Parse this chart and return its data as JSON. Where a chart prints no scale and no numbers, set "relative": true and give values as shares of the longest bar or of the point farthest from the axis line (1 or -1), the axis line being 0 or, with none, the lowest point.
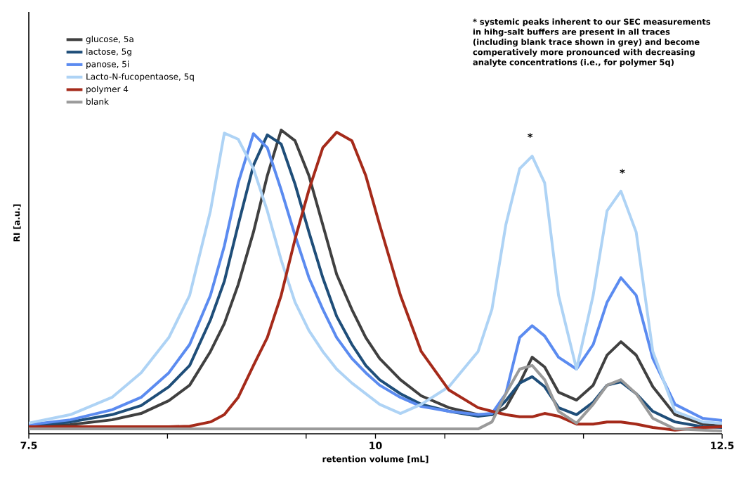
{
  "chart_data": {
    "type": "line",
    "relative": true,
    "xlabel": "retention volume [mL]",
    "ylabel": "RI [a.u.]",
    "xlim": [
      7.5,
      12.5
    ],
    "xticks": [
      7.5,
      {
        "value": 8.5,
        "label": null
      },
      {
        "value": 9.5,
        "label": null
      },
      10,
      {
        "value": 10.5,
        "label": null
      },
      {
        "value": 11.5,
        "label": null
      },
      12.5
    ],
    "legend": "top left",
    "marker": "none",
    "line_style": "solid",
    "grid": false,
    "x": [
      7.5,
      7.8,
      8.1,
      8.31,
      8.51,
      8.66,
      8.81,
      8.91,
      9.01,
      9.12,
      9.22,
      9.32,
      9.42,
      9.52,
      9.62,
      9.72,
      9.83,
      9.93,
      10.03,
      10.18,
      10.33,
      10.53,
      10.74,
      10.84,
      10.94,
      11.04,
      11.13,
      11.22,
      11.32,
      11.45,
      11.57,
      11.67,
      11.77,
      11.88,
      12.0,
      12.16,
      12.36,
      12.5
    ],
    "series": [
      {
        "name": "glucose, 5a",
        "color": "#404040",
        "values": [
          0.023,
          0.03,
          0.046,
          0.067,
          0.109,
          0.16,
          0.271,
          0.363,
          0.491,
          0.664,
          0.85,
          1.0,
          0.965,
          0.85,
          0.688,
          0.525,
          0.409,
          0.317,
          0.248,
          0.178,
          0.125,
          0.086,
          0.063,
          0.063,
          0.086,
          0.167,
          0.252,
          0.22,
          0.137,
          0.111,
          0.16,
          0.259,
          0.303,
          0.259,
          0.155,
          0.063,
          0.032,
          0.025
        ]
      },
      {
        "name": "lactose, 5g",
        "color": "#1f4e79",
        "values": [
          0.028,
          0.039,
          0.063,
          0.093,
          0.155,
          0.225,
          0.375,
          0.502,
          0.688,
          0.884,
          0.984,
          0.954,
          0.822,
          0.664,
          0.514,
          0.387,
          0.294,
          0.225,
          0.178,
          0.132,
          0.097,
          0.074,
          0.058,
          0.063,
          0.109,
          0.167,
          0.188,
          0.155,
          0.086,
          0.063,
          0.104,
          0.16,
          0.171,
          0.132,
          0.074,
          0.039,
          0.023,
          0.021
        ]
      },
      {
        "name": "panose, 5i",
        "color": "#5b8bf0",
        "values": [
          0.03,
          0.046,
          0.079,
          0.12,
          0.201,
          0.294,
          0.456,
          0.618,
          0.826,
          0.988,
          0.942,
          0.803,
          0.653,
          0.514,
          0.41,
          0.317,
          0.248,
          0.201,
          0.16,
          0.12,
          0.09,
          0.074,
          0.063,
          0.067,
          0.132,
          0.317,
          0.356,
          0.322,
          0.252,
          0.213,
          0.294,
          0.433,
          0.514,
          0.456,
          0.248,
          0.097,
          0.051,
          0.044
        ]
      },
      {
        "name": "Lacto-N-fucopentaose, 5q",
        "color": "#aed3f5",
        "values": [
          0.035,
          0.063,
          0.12,
          0.201,
          0.317,
          0.456,
          0.734,
          0.99,
          0.97,
          0.873,
          0.734,
          0.572,
          0.433,
          0.34,
          0.271,
          0.213,
          0.167,
          0.132,
          0.097,
          0.067,
          0.097,
          0.155,
          0.271,
          0.41,
          0.688,
          0.873,
          0.914,
          0.826,
          0.456,
          0.213,
          0.456,
          0.734,
          0.799,
          0.664,
          0.271,
          0.074,
          0.039,
          0.035
        ]
      },
      {
        "name": "polymer 4",
        "color": "#a52a1a",
        "values": [
          0.023,
          0.023,
          0.023,
          0.023,
          0.023,
          0.025,
          0.039,
          0.063,
          0.12,
          0.225,
          0.317,
          0.456,
          0.641,
          0.803,
          0.942,
          0.993,
          0.965,
          0.85,
          0.688,
          0.456,
          0.271,
          0.144,
          0.086,
          0.074,
          0.063,
          0.056,
          0.056,
          0.067,
          0.058,
          0.032,
          0.032,
          0.039,
          0.039,
          0.032,
          0.021,
          0.012,
          0.021,
          0.023
        ]
      },
      {
        "name": "blank",
        "color": "#9a9a9a",
        "values": [
          0.016,
          0.016,
          0.016,
          0.016,
          0.016,
          0.016,
          0.016,
          0.016,
          0.016,
          0.016,
          0.016,
          0.016,
          0.016,
          0.016,
          0.016,
          0.016,
          0.016,
          0.016,
          0.016,
          0.016,
          0.016,
          0.016,
          0.016,
          0.039,
          0.132,
          0.213,
          0.225,
          0.178,
          0.074,
          0.035,
          0.097,
          0.16,
          0.178,
          0.132,
          0.051,
          0.016,
          0.012,
          0.009
        ]
      }
    ],
    "annotations": [
      "* systemic peaks inherent to our SEC measurements in hihg-salt buffers are present in all traces (including blank  trace shown in grey) and become comperatively more pronounced with decreasing analyte concentrations (i.e., for polymer 5q)",
      "*",
      "*"
    ]
  }
}
